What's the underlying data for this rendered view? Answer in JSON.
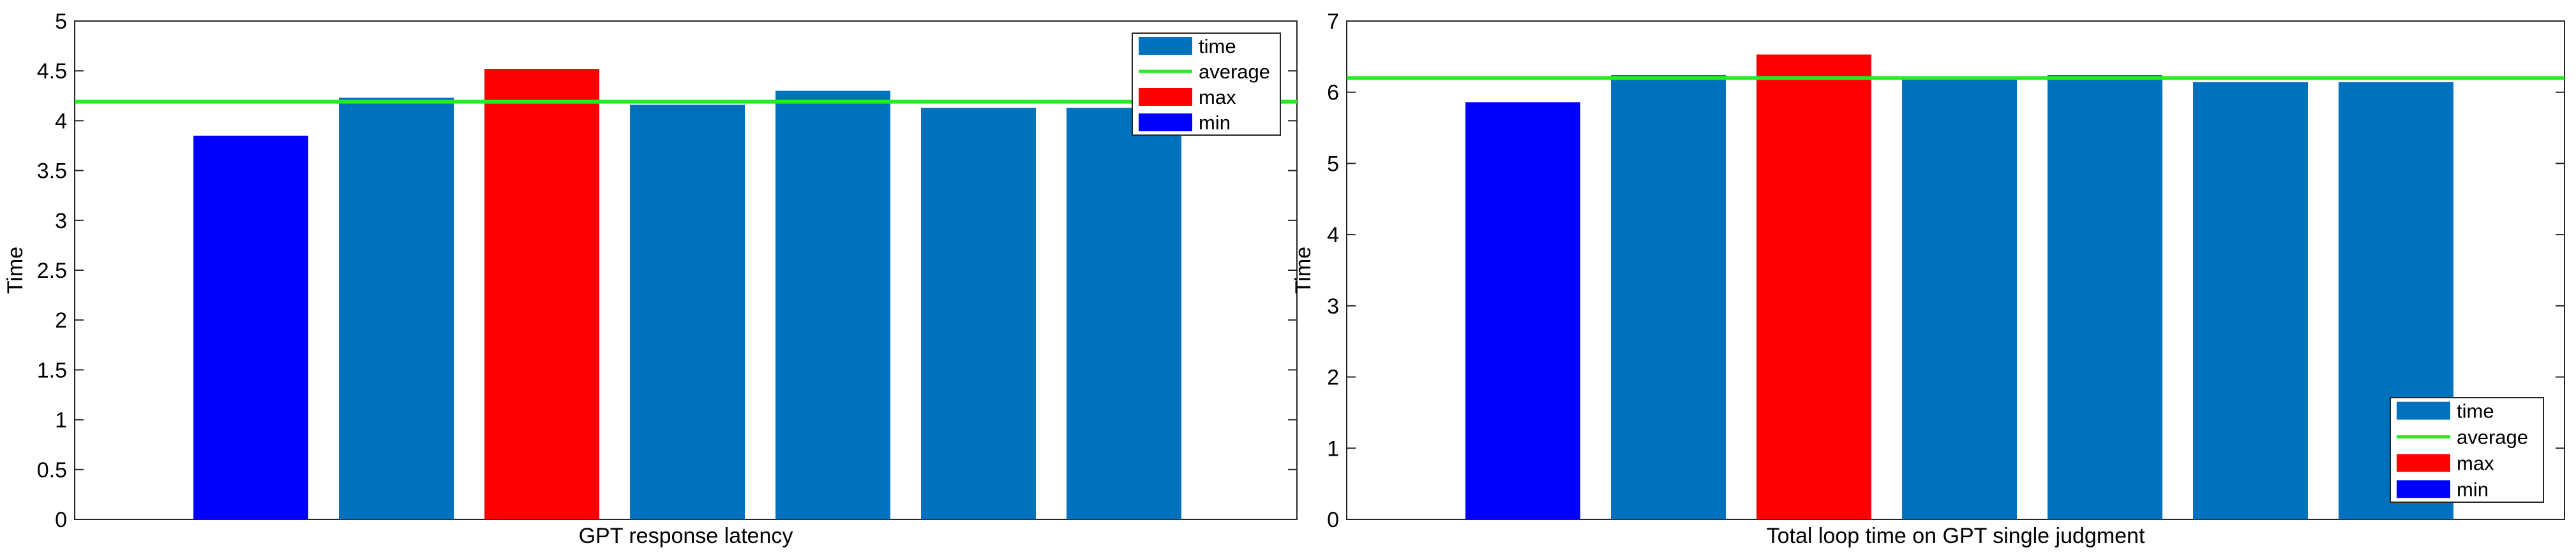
{
  "chart_data": [
    {
      "type": "bar",
      "title": "",
      "xlabel": "GPT response latency",
      "ylabel": "Time",
      "ylim": [
        0,
        5
      ],
      "yticks": [
        0,
        0.5,
        1,
        1.5,
        2,
        2.5,
        3,
        3.5,
        4,
        4.5,
        5
      ],
      "ytick_labels": [
        "0",
        "0.5",
        "1",
        "1.5",
        "2",
        "2.5",
        "3",
        "3.5",
        "4",
        "4.5",
        "5"
      ],
      "grid": false,
      "legend_position": "top-right",
      "values": [
        3.85,
        4.23,
        4.52,
        4.16,
        4.3,
        4.13,
        4.13
      ],
      "average": 4.19,
      "max_index": 2,
      "min_index": 0,
      "legend": [
        "time",
        "average",
        "max",
        "min"
      ],
      "colors": {
        "time": "#0072BD",
        "average": "#22EE22",
        "max": "#FF0000",
        "min": "#0000FF"
      }
    },
    {
      "type": "bar",
      "title": "",
      "xlabel": "Total loop time on GPT single judgment",
      "ylabel": "Time",
      "ylim": [
        0,
        7
      ],
      "yticks": [
        0,
        1,
        2,
        3,
        4,
        5,
        6,
        7
      ],
      "ytick_labels": [
        "0",
        "1",
        "2",
        "3",
        "4",
        "5",
        "6",
        "7"
      ],
      "grid": false,
      "legend_position": "bottom-right",
      "values": [
        5.86,
        6.24,
        6.53,
        6.19,
        6.24,
        6.14,
        6.14
      ],
      "average": 6.2,
      "max_index": 2,
      "min_index": 0,
      "legend": [
        "time",
        "average",
        "max",
        "min"
      ],
      "colors": {
        "time": "#0072BD",
        "average": "#22EE22",
        "max": "#FF0000",
        "min": "#0000FF"
      }
    }
  ]
}
